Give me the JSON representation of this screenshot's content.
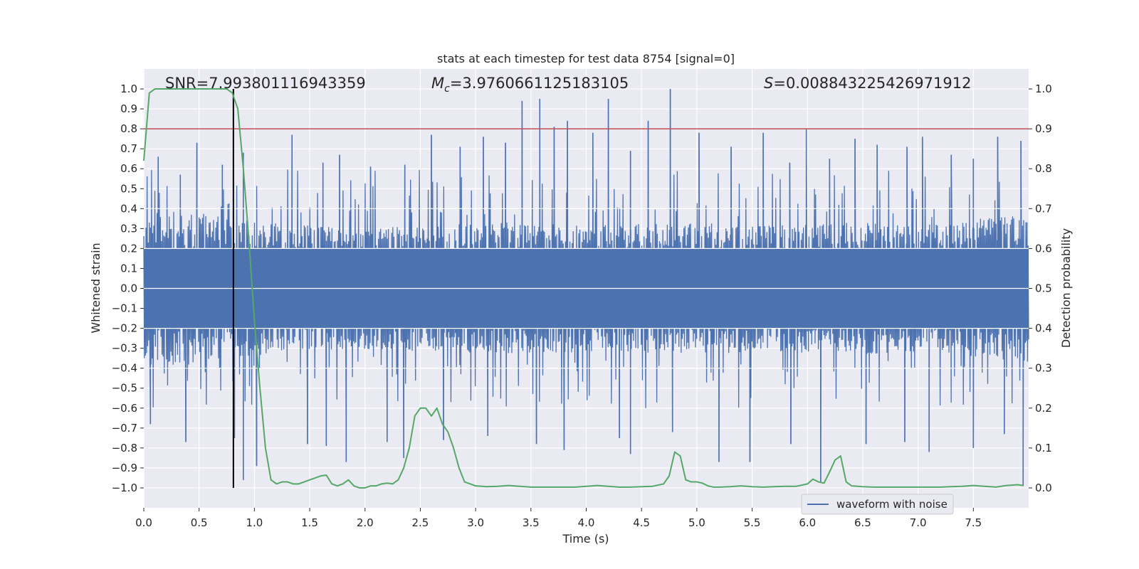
{
  "chart_data": {
    "type": "line",
    "title": "stats at each timestep for test data 8754 [signal=0]",
    "xlabel": "Time (s)",
    "ylabel_left": "Whitened strain",
    "ylabel_right": "Detection probability",
    "xlim": [
      0,
      8.0
    ],
    "ylim_left": [
      -1.1,
      1.1
    ],
    "ylim_right": [
      -0.05,
      1.05
    ],
    "x_ticks": [
      "0.0",
      "0.5",
      "1.0",
      "1.5",
      "2.0",
      "2.5",
      "3.0",
      "3.5",
      "4.0",
      "4.5",
      "5.0",
      "5.5",
      "6.0",
      "6.5",
      "7.0",
      "7.5"
    ],
    "left_ticks": [
      "1.0",
      "0.9",
      "0.8",
      "0.7",
      "0.6",
      "0.5",
      "0.4",
      "0.3",
      "0.2",
      "0.1",
      "0.0",
      "−0.1",
      "−0.2",
      "−0.3",
      "−0.4",
      "−0.5",
      "−0.6",
      "−0.7",
      "−0.8",
      "−0.9",
      "−1.0"
    ],
    "right_ticks": [
      "1.0",
      "0.9",
      "0.8",
      "0.7",
      "0.6",
      "0.5",
      "0.4",
      "0.3",
      "0.2",
      "0.1",
      "0.0"
    ],
    "grid": true,
    "annotations": {
      "snr_label": "SNR=7.993801116943359",
      "mc_symbol": "M",
      "mc_sub": "c",
      "mc_value": "=3.9760661125183105",
      "s_symbol": "S",
      "s_value": "=0.008843225426971912"
    },
    "threshold_probability": 0.9,
    "marker_time": 0.81,
    "legend": {
      "label": "waveform with noise",
      "placement": "lower-right"
    },
    "series": [
      {
        "name": "waveform with noise",
        "axis": "left",
        "color": "#4c72b0",
        "envelope_upper": [
          [
            0,
            0.38
          ],
          [
            0.5,
            0.36
          ],
          [
            1,
            0.32
          ],
          [
            1.5,
            0.3
          ],
          [
            2,
            0.29
          ],
          [
            2.5,
            0.3
          ],
          [
            3,
            0.31
          ],
          [
            3.5,
            0.32
          ],
          [
            4,
            0.3
          ],
          [
            4.5,
            0.31
          ],
          [
            5,
            0.32
          ],
          [
            5.5,
            0.3
          ],
          [
            6,
            0.31
          ],
          [
            6.5,
            0.32
          ],
          [
            7,
            0.3
          ],
          [
            7.5,
            0.33
          ],
          [
            8,
            0.35
          ]
        ],
        "peaks": [
          [
            0.13,
            0.66
          ],
          [
            0.33,
            0.57
          ],
          [
            0.48,
            0.73
          ],
          [
            0.71,
            0.62
          ],
          [
            0.9,
            0.68
          ],
          [
            1.34,
            0.77
          ],
          [
            1.62,
            0.63
          ],
          [
            1.77,
            0.67
          ],
          [
            2.05,
            0.61
          ],
          [
            2.36,
            0.62
          ],
          [
            2.6,
            0.77
          ],
          [
            2.86,
            0.71
          ],
          [
            3.07,
            0.76
          ],
          [
            3.27,
            0.73
          ],
          [
            3.42,
            0.94
          ],
          [
            3.58,
            0.95
          ],
          [
            3.71,
            0.81
          ],
          [
            3.83,
            0.84
          ],
          [
            4.06,
            0.78
          ],
          [
            4.2,
            0.95
          ],
          [
            4.4,
            0.69
          ],
          [
            4.56,
            0.84
          ],
          [
            4.76,
            1.0
          ],
          [
            5.02,
            0.78
          ],
          [
            5.31,
            0.71
          ],
          [
            5.6,
            0.78
          ],
          [
            5.84,
            0.63
          ],
          [
            5.99,
            0.8
          ],
          [
            6.2,
            0.65
          ],
          [
            6.43,
            0.75
          ],
          [
            6.63,
            0.72
          ],
          [
            6.9,
            0.71
          ],
          [
            7.04,
            0.76
          ],
          [
            7.3,
            0.67
          ],
          [
            7.5,
            0.65
          ],
          [
            7.72,
            0.76
          ],
          [
            7.93,
            0.74
          ]
        ],
        "troughs": [
          [
            0.06,
            -0.68
          ],
          [
            0.38,
            -0.77
          ],
          [
            0.82,
            -0.75
          ],
          [
            0.9,
            -0.96
          ],
          [
            1.02,
            -0.89
          ],
          [
            1.48,
            -0.78
          ],
          [
            1.65,
            -0.79
          ],
          [
            1.83,
            -0.87
          ],
          [
            2.2,
            -0.77
          ],
          [
            2.35,
            -0.85
          ],
          [
            2.71,
            -0.76
          ],
          [
            3.11,
            -0.74
          ],
          [
            3.55,
            -0.78
          ],
          [
            3.8,
            -0.81
          ],
          [
            4.3,
            -0.75
          ],
          [
            4.4,
            -0.83
          ],
          [
            4.78,
            -0.72
          ],
          [
            5.2,
            -0.87
          ],
          [
            5.48,
            -0.87
          ],
          [
            5.85,
            -0.78
          ],
          [
            6.12,
            -0.97
          ],
          [
            6.53,
            -0.78
          ],
          [
            6.88,
            -0.77
          ],
          [
            7.1,
            -0.82
          ],
          [
            7.5,
            -0.8
          ],
          [
            7.78,
            -0.73
          ],
          [
            7.95,
            -0.99
          ]
        ]
      },
      {
        "name": "detection probability",
        "axis": "right",
        "color": "#55a868",
        "x": [
          0.0,
          0.05,
          0.1,
          0.15,
          0.2,
          0.25,
          0.3,
          0.35,
          0.4,
          0.45,
          0.5,
          0.55,
          0.6,
          0.65,
          0.7,
          0.75,
          0.8,
          0.85,
          0.9,
          0.95,
          1.0,
          1.05,
          1.1,
          1.15,
          1.2,
          1.25,
          1.3,
          1.35,
          1.4,
          1.45,
          1.5,
          1.55,
          1.6,
          1.65,
          1.7,
          1.75,
          1.8,
          1.85,
          1.9,
          1.95,
          2.0,
          2.05,
          2.1,
          2.15,
          2.2,
          2.25,
          2.3,
          2.35,
          2.4,
          2.45,
          2.5,
          2.55,
          2.6,
          2.65,
          2.7,
          2.75,
          2.8,
          2.85,
          2.9,
          2.95,
          3.0,
          3.1,
          3.2,
          3.3,
          3.4,
          3.5,
          3.6,
          3.7,
          3.8,
          3.9,
          4.0,
          4.1,
          4.2,
          4.3,
          4.4,
          4.5,
          4.6,
          4.7,
          4.75,
          4.8,
          4.85,
          4.9,
          4.95,
          5.0,
          5.05,
          5.1,
          5.15,
          5.2,
          5.3,
          5.4,
          5.5,
          5.6,
          5.7,
          5.8,
          5.9,
          6.0,
          6.05,
          6.1,
          6.15,
          6.2,
          6.25,
          6.3,
          6.35,
          6.4,
          6.5,
          6.6,
          6.7,
          6.8,
          6.9,
          7.0,
          7.1,
          7.2,
          7.3,
          7.4,
          7.5,
          7.6,
          7.7,
          7.8,
          7.9,
          7.95
        ],
        "values": [
          0.82,
          0.99,
          1.0,
          1.0,
          1.0,
          1.0,
          1.0,
          1.0,
          1.0,
          1.0,
          1.0,
          1.0,
          1.0,
          1.0,
          1.0,
          1.0,
          0.99,
          0.95,
          0.8,
          0.62,
          0.42,
          0.25,
          0.1,
          0.02,
          0.01,
          0.015,
          0.015,
          0.01,
          0.01,
          0.015,
          0.02,
          0.025,
          0.03,
          0.032,
          0.01,
          0.005,
          0.01,
          0.02,
          0.005,
          0.0,
          0.0,
          0.005,
          0.005,
          0.01,
          0.012,
          0.01,
          0.02,
          0.05,
          0.1,
          0.18,
          0.2,
          0.2,
          0.18,
          0.2,
          0.16,
          0.14,
          0.1,
          0.05,
          0.015,
          0.01,
          0.005,
          0.003,
          0.004,
          0.006,
          0.004,
          0.002,
          0.002,
          0.002,
          0.002,
          0.002,
          0.004,
          0.006,
          0.004,
          0.002,
          0.002,
          0.003,
          0.004,
          0.01,
          0.03,
          0.09,
          0.08,
          0.02,
          0.015,
          0.015,
          0.012,
          0.005,
          0.002,
          0.002,
          0.003,
          0.005,
          0.003,
          0.002,
          0.003,
          0.004,
          0.004,
          0.01,
          0.022,
          0.015,
          0.012,
          0.04,
          0.07,
          0.08,
          0.015,
          0.005,
          0.003,
          0.002,
          0.002,
          0.002,
          0.002,
          0.002,
          0.002,
          0.002,
          0.003,
          0.004,
          0.006,
          0.004,
          0.002,
          0.006,
          0.008,
          0.006
        ]
      }
    ]
  }
}
